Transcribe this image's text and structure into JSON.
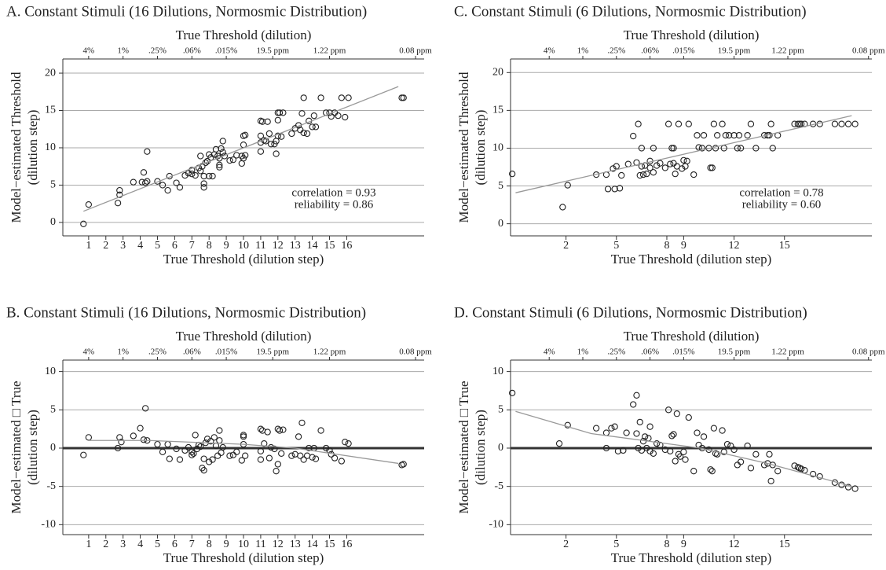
{
  "chart_data": [
    {
      "type": "scatter",
      "title": "A. Constant Stimuli (16 Dilutions, Normosmic Distribution)",
      "x_label": "True Threshold (dilution step)",
      "x2_label": "True Threshold (dilution)",
      "y_label": [
        "Model−estimated Threshold",
        "(dilution step)"
      ],
      "annotations": [
        "correlation = 0.93",
        "reliability = 0.86"
      ],
      "xlim": [
        -0.5,
        20.5
      ],
      "ylim": [
        -1.8,
        21.9
      ],
      "xticks": [
        1,
        2,
        3,
        4,
        5,
        6,
        7,
        8,
        9,
        10,
        11,
        12,
        13,
        14,
        15,
        16
      ],
      "yticks": [
        0,
        5,
        10,
        15,
        20
      ],
      "x2ticks": [
        {
          "value": 1,
          "label": "4%"
        },
        {
          "value": 3,
          "label": "1%"
        },
        {
          "value": 5,
          "label": ".25%"
        },
        {
          "value": 7,
          "label": ".06%"
        },
        {
          "value": 9,
          "label": ".015%"
        },
        {
          "value": 11.7,
          "label": "19.5 ppm"
        },
        {
          "value": 15,
          "label": "1.22 ppm"
        },
        {
          "value": 20,
          "label": "0.08 ppm"
        }
      ],
      "grid": true,
      "zero_line": false,
      "point_color": "#222",
      "fit_color": "#999",
      "points": {
        "x": [
          0.7,
          1,
          2.7,
          2.8,
          2.8,
          3.6,
          4.1,
          4.2,
          4.4,
          4.4,
          4.3,
          5,
          5.3,
          5.6,
          5.7,
          6.1,
          6.3,
          6.6,
          6.8,
          7,
          7,
          7.2,
          7.4,
          7.5,
          7.5,
          7.6,
          7.7,
          7.7,
          7.7,
          7.8,
          7.9,
          8,
          8,
          8.1,
          8.2,
          8.3,
          8.4,
          8.5,
          8.6,
          8.6,
          8.6,
          8.7,
          8.8,
          8.8,
          8.9,
          9.2,
          9.4,
          9.6,
          9.9,
          9.9,
          10,
          10,
          10,
          10.1,
          10.1,
          11,
          11,
          11,
          11,
          11.1,
          11.2,
          11.3,
          11.4,
          11.5,
          11.6,
          11.8,
          11.9,
          11.9,
          12,
          12,
          12,
          12.1,
          12.2,
          12.3,
          12.8,
          13,
          13.2,
          13.3,
          13.4,
          13.5,
          13.5,
          13.7,
          13.8,
          14,
          14.1,
          14.2,
          14.5,
          14.8,
          15,
          15.1,
          15.3,
          15.5,
          15.7,
          15.9,
          16.1,
          19.2,
          19.3
        ],
        "y": [
          -0.2,
          2.4,
          2.6,
          3.7,
          4.3,
          5.4,
          5.4,
          6.7,
          5.5,
          9.5,
          5.3,
          5.5,
          5,
          4.3,
          6.2,
          5.3,
          4.7,
          6.3,
          6.6,
          6.5,
          7,
          6.3,
          7.3,
          6.9,
          8.9,
          7.5,
          6.2,
          5.2,
          4.7,
          8,
          8.2,
          6.2,
          9.1,
          8.7,
          6.2,
          9.1,
          9.8,
          8.9,
          7.4,
          7.7,
          8.6,
          9.9,
          9.4,
          10.9,
          8.9,
          8.3,
          8.4,
          9,
          7.9,
          8.9,
          8.6,
          10.4,
          11.6,
          11.7,
          9,
          9.5,
          10.7,
          11.6,
          13.6,
          13.5,
          11,
          10.9,
          13.5,
          11.9,
          10.5,
          10.5,
          9.2,
          10.9,
          11.6,
          13.7,
          14.7,
          14.7,
          11.5,
          14.7,
          11.9,
          12.6,
          13,
          12.4,
          14.6,
          16.7,
          12,
          11.9,
          13.6,
          12.8,
          14.3,
          12.8,
          16.7,
          14.7,
          14.7,
          14.2,
          14.7,
          14.3,
          16.7,
          14.1,
          16.7,
          16.7,
          16.7
        ]
      },
      "fit": {
        "x": [
          0.7,
          19
        ],
        "y": [
          1.5,
          18.2
        ]
      }
    },
    {
      "type": "scatter",
      "title": "B. Constant Stimuli (16 Dilutions, Normosmic Distribution)",
      "x_label": "True Threshold (dilution step)",
      "x2_label": "True Threshold (dilution)",
      "y_label": [
        "Model−estimated □ True",
        "(dilution step)"
      ],
      "annotations": [],
      "xlim": [
        -0.5,
        20.5
      ],
      "ylim": [
        -11.3,
        11.5
      ],
      "xticks": [
        1,
        2,
        3,
        4,
        5,
        6,
        7,
        8,
        9,
        10,
        11,
        12,
        13,
        14,
        15,
        16
      ],
      "yticks": [
        -10,
        -5,
        0,
        5,
        10
      ],
      "x2ticks": [
        {
          "value": 1,
          "label": "4%"
        },
        {
          "value": 3,
          "label": "1%"
        },
        {
          "value": 5,
          "label": ".25%"
        },
        {
          "value": 7,
          "label": ".06%"
        },
        {
          "value": 9,
          "label": ".015%"
        },
        {
          "value": 11.7,
          "label": "19.5 ppm"
        },
        {
          "value": 15,
          "label": "1.22 ppm"
        },
        {
          "value": 20,
          "label": "0.08 ppm"
        }
      ],
      "grid": true,
      "zero_line": true,
      "point_color": "#222",
      "fit_color": "#999",
      "points": {
        "x": [
          0.7,
          1,
          2.7,
          2.8,
          2.9,
          3.6,
          4,
          4.2,
          4.3,
          4.4,
          5,
          5.3,
          5.6,
          5.7,
          6.1,
          6.3,
          6.6,
          6.8,
          7,
          7,
          7.1,
          7.2,
          7.3,
          7.4,
          7.5,
          7.6,
          7.7,
          7.7,
          7.8,
          7.9,
          8,
          8.1,
          8.2,
          8.3,
          8.4,
          8.5,
          8.6,
          8.6,
          8.7,
          8.8,
          9.2,
          9.4,
          9.6,
          9.9,
          10,
          10,
          10,
          10.1,
          11,
          11,
          11,
          11.1,
          11.2,
          11.4,
          11.5,
          11.6,
          11.8,
          11.9,
          12,
          12,
          12.1,
          12.2,
          12.3,
          12.8,
          13,
          13.2,
          13.3,
          13.4,
          13.5,
          13.7,
          13.8,
          14,
          14.1,
          14.2,
          14.5,
          14.8,
          15,
          15.1,
          15.3,
          15.7,
          15.9,
          16.1,
          19.2,
          19.3
        ],
        "y": [
          -0.9,
          1.4,
          0,
          1.4,
          0.8,
          1.6,
          2.6,
          1.1,
          5.2,
          1,
          0.5,
          -0.5,
          0.5,
          -1.4,
          -0.1,
          -1.5,
          -0.3,
          0.1,
          -0.5,
          -0.9,
          -0.7,
          1.7,
          -0.1,
          0.4,
          0.2,
          -2.6,
          -1.4,
          -2.9,
          0.7,
          1.2,
          -1.8,
          0.9,
          -1.5,
          1.4,
          0.3,
          -1,
          2.3,
          1,
          -0.6,
          0.1,
          -1,
          -0.9,
          -0.5,
          -1.6,
          1.7,
          1.5,
          0.5,
          -1,
          2.5,
          -0.4,
          -1.5,
          2.3,
          0.6,
          2.1,
          -1.3,
          0.1,
          -0.1,
          -3,
          -2.1,
          2.5,
          2.3,
          -0.7,
          2.4,
          -1,
          -0.8,
          1.5,
          -1,
          3.3,
          -1.5,
          -1,
          0,
          -1.2,
          0,
          -1.4,
          2.3,
          0,
          -0.3,
          -0.8,
          -1.3,
          -1.7,
          0.8,
          0.6,
          -2.2,
          -2.1
        ]
      },
      "fit": {
        "x": [
          1,
          4.5,
          10,
          13,
          19
        ],
        "y": [
          1,
          1,
          0.5,
          0,
          -2
        ]
      }
    },
    {
      "type": "scatter",
      "title": "C. Constant Stimuli (6 Dilutions, Normosmic Distribution)",
      "x_label": "True Threshold (dilution step)",
      "x2_label": "True Threshold (dilution)",
      "y_label": [
        "Model−estimated Threshold",
        "(dilution step)"
      ],
      "annotations": [
        "correlation = 0.78",
        "reliability = 0.60"
      ],
      "xlim": [
        -1.3,
        20.2
      ],
      "ylim": [
        -1.6,
        21.8
      ],
      "xticks": [
        2,
        5,
        8,
        9,
        12,
        15
      ],
      "yticks": [
        0,
        5,
        10,
        15,
        20
      ],
      "x2ticks": [
        {
          "value": 1,
          "label": "4%"
        },
        {
          "value": 3,
          "label": "1%"
        },
        {
          "value": 5,
          "label": ".25%"
        },
        {
          "value": 7,
          "label": ".06%"
        },
        {
          "value": 9,
          "label": ".015%"
        },
        {
          "value": 12,
          "label": "19.5 ppm"
        },
        {
          "value": 15.2,
          "label": "1.22 ppm"
        },
        {
          "value": 20,
          "label": "0.08 ppm"
        }
      ],
      "grid": true,
      "zero_line": false,
      "point_color": "#222",
      "fit_color": "#999",
      "points": {
        "x": [
          -1.2,
          1.8,
          2.1,
          3.8,
          4.4,
          4.5,
          4.8,
          4.9,
          5,
          5.2,
          5.3,
          5.7,
          6,
          6.2,
          6.3,
          6.4,
          6.5,
          6.5,
          6.6,
          6.7,
          6.8,
          7,
          7,
          7.2,
          7.2,
          7.4,
          7.6,
          7.9,
          8.1,
          8.2,
          8.3,
          8.4,
          8.4,
          8.5,
          8.6,
          8.7,
          8.9,
          9,
          9.1,
          9.2,
          9.3,
          9.6,
          9.8,
          9.9,
          10.1,
          10.2,
          10.5,
          10.6,
          10.7,
          10.8,
          10.9,
          11,
          11.3,
          11.4,
          11.5,
          11.7,
          12,
          12.2,
          12.3,
          12.4,
          12.8,
          13,
          13.3,
          13.8,
          14,
          14.1,
          14.2,
          14.3,
          14.6,
          15.6,
          15.8,
          15.9,
          16,
          16.2,
          16.7,
          17.1,
          18,
          18.4,
          18.8,
          19.2
        ],
        "y": [
          6.6,
          2.2,
          5.1,
          6.5,
          6.5,
          4.6,
          7.3,
          4.6,
          7.6,
          4.7,
          6.4,
          7.9,
          11.6,
          8.1,
          13.2,
          6.4,
          7.6,
          10,
          6.5,
          7.7,
          6.6,
          7.4,
          8.3,
          10,
          6.8,
          7.7,
          8,
          7.4,
          13.2,
          7.9,
          10,
          8,
          10,
          6.6,
          7.6,
          13.2,
          7.3,
          8.4,
          7.6,
          8.3,
          13.2,
          6.5,
          11.7,
          10.1,
          10,
          11.7,
          10,
          7.4,
          7.4,
          13.2,
          10,
          11.7,
          13.2,
          10,
          11.7,
          11.7,
          11.7,
          10,
          11.7,
          10,
          11.7,
          13.2,
          10,
          11.7,
          11.7,
          11.7,
          13.2,
          10,
          11.7,
          13.2,
          13.2,
          13.2,
          13.2,
          13.2,
          13.2,
          13.2,
          13.2,
          13.2,
          13.2,
          13.2
        ]
      },
      "fit": {
        "x": [
          -1,
          19
        ],
        "y": [
          4.1,
          14.3
        ]
      }
    },
    {
      "type": "scatter",
      "title": "D. Constant Stimuli (6 Dilutions, Normosmic Distribution)",
      "x_label": "True Threshold (dilution step)",
      "x2_label": "True Threshold (dilution)",
      "y_label": [
        "Model−estimated □ True",
        "(dilution step)"
      ],
      "annotations": [],
      "xlim": [
        -1.3,
        20.2
      ],
      "ylim": [
        -11.3,
        11.5
      ],
      "xticks": [
        2,
        5,
        8,
        9,
        12,
        15
      ],
      "yticks": [
        -10,
        -5,
        0,
        5,
        10
      ],
      "x2ticks": [
        {
          "value": 1,
          "label": "4%"
        },
        {
          "value": 3,
          "label": "1%"
        },
        {
          "value": 5,
          "label": ".25%"
        },
        {
          "value": 7,
          "label": ".06%"
        },
        {
          "value": 9,
          "label": ".015%"
        },
        {
          "value": 12,
          "label": "19.5 ppm"
        },
        {
          "value": 15.2,
          "label": "1.22 ppm"
        },
        {
          "value": 20,
          "label": "0.08 ppm"
        }
      ],
      "grid": true,
      "zero_line": true,
      "point_color": "#222",
      "fit_color": "#999",
      "points": {
        "x": [
          -1.2,
          1.6,
          2.1,
          3.8,
          4.4,
          4.4,
          4.7,
          4.9,
          5.1,
          5.4,
          5.6,
          6,
          6.2,
          6.2,
          6.3,
          6.4,
          6.5,
          6.6,
          6.7,
          6.8,
          6.9,
          7,
          7,
          7.2,
          7.4,
          7.6,
          7.9,
          8.1,
          8.2,
          8.3,
          8.4,
          8.5,
          8.6,
          8.7,
          8.8,
          9,
          9.1,
          9.3,
          9.6,
          9.8,
          9.9,
          10.1,
          10.2,
          10.5,
          10.6,
          10.7,
          10.8,
          10.9,
          11,
          11.3,
          11.4,
          11.6,
          11.8,
          12,
          12.2,
          12.4,
          12.8,
          13,
          13.3,
          13.8,
          14,
          14.1,
          14.2,
          14.3,
          14.6,
          15.6,
          15.8,
          15.9,
          16,
          16.2,
          16.7,
          17.1,
          18,
          18.4,
          18.8,
          19.2
        ],
        "y": [
          7.2,
          0.6,
          3,
          2.6,
          0,
          2,
          2.6,
          2.8,
          -0.4,
          -0.3,
          2,
          5.7,
          6.9,
          1.9,
          0,
          3.4,
          -0.3,
          0.9,
          1.5,
          0,
          1.3,
          2.8,
          -0.4,
          -0.7,
          0.6,
          0.4,
          -0.2,
          5,
          -0.4,
          1.6,
          1.8,
          -1.7,
          4.5,
          -0.8,
          -1.1,
          -0.5,
          -1.5,
          4,
          -3,
          2,
          0.4,
          0,
          1.5,
          -0.2,
          -2.8,
          -3,
          2.6,
          -0.7,
          -0.8,
          2.3,
          -0.5,
          0.5,
          0.3,
          -0.2,
          -2.2,
          -1.8,
          0.3,
          -2.6,
          -0.8,
          -2.2,
          -2,
          -0.8,
          -4.3,
          -2.2,
          -3,
          -2.3,
          -2.5,
          -2.6,
          -2.7,
          -2.9,
          -3.4,
          -3.7,
          -4.5,
          -4.8,
          -5.1,
          -5.3
        ]
      },
      "fit": {
        "x": [
          -1,
          3.5,
          10,
          14,
          19
        ],
        "y": [
          4.8,
          1.9,
          0,
          -2,
          -5
        ]
      }
    }
  ]
}
